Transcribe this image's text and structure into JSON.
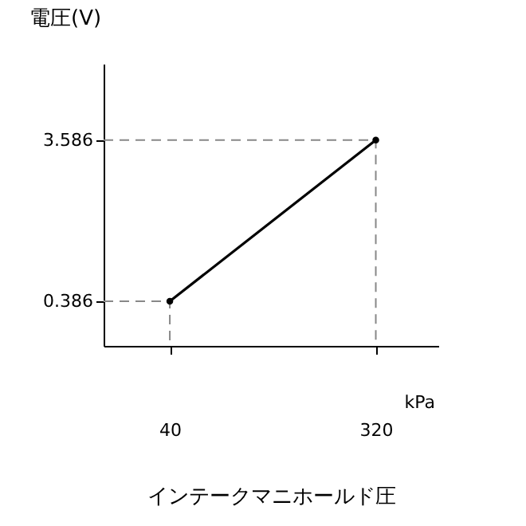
{
  "chart_data": {
    "type": "line",
    "ylabel": "電圧(V)",
    "xlabel": "インテークマニホールド圧",
    "annotations": [
      "kPa"
    ],
    "x": [
      40,
      320
    ],
    "series": [
      {
        "type": "line",
        "color": "#888888",
        "line_style": "dashed",
        "marker": "none",
        "x": [
          -50,
          40,
          40
        ],
        "values": [
          0.386,
          0.386,
          -0.5
        ]
      },
      {
        "type": "line",
        "color": "#888888",
        "line_style": "dashed",
        "marker": "none",
        "x": [
          -50,
          320,
          320
        ],
        "values": [
          3.586,
          3.586,
          -0.5
        ]
      },
      {
        "color": "#000000",
        "values": [
          0.386,
          3.586
        ]
      }
    ],
    "xlim": [
      -50,
      405
    ],
    "ylim": [
      -0.5,
      5.1
    ],
    "xticks": [
      40,
      320
    ],
    "yticks": [
      3.586,
      0.386
    ],
    "marker": "circle",
    "line_style": "solid"
  }
}
